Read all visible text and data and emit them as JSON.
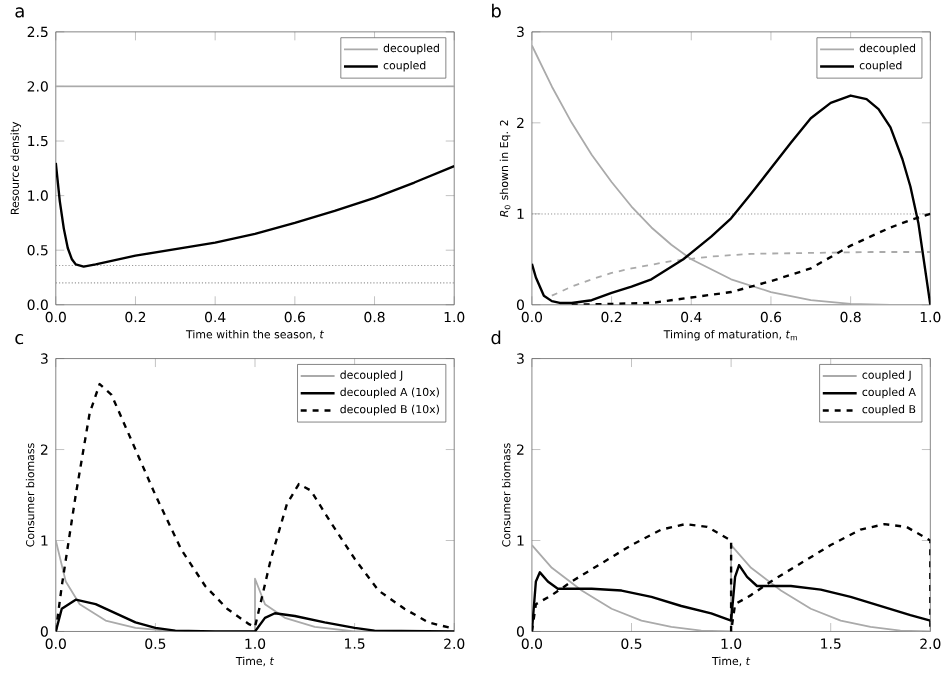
{
  "chart_data": [
    {
      "type": "line",
      "title": "a",
      "xlabel": "Time within the season, *t*",
      "ylabel": "Resource density",
      "xlim": [
        0,
        1
      ],
      "ylim": [
        0,
        2.5
      ],
      "xticks": [
        {
          "value": 0,
          "label": "0.0"
        },
        {
          "value": 0.2,
          "label": "0.2"
        },
        {
          "value": 0.4,
          "label": "0.4"
        },
        {
          "value": 0.6,
          "label": "0.6"
        },
        {
          "value": 0.8,
          "label": "0.8"
        },
        {
          "value": 1,
          "label": "1.0"
        }
      ],
      "yticks": [
        {
          "value": 0,
          "label": "0.0"
        },
        {
          "value": 0.5,
          "label": "0.5"
        },
        {
          "value": 1,
          "label": "1.0"
        },
        {
          "value": 1.5,
          "label": "1.5"
        },
        {
          "value": 2,
          "label": "2.0"
        },
        {
          "value": 2.5,
          "label": "2.5"
        }
      ],
      "legend": "top right",
      "grid": false,
      "marker": "none",
      "ref_lines": [
        {
          "axis": "y",
          "value": 0.36,
          "color": "#999999",
          "line_style": "dotted"
        },
        {
          "axis": "y",
          "value": 0.2,
          "color": "#999999",
          "line_style": "dotted"
        }
      ],
      "series": [
        {
          "name": "decoupled",
          "color": "#aaaaaa",
          "line_style": "solid",
          "x": [
            0,
            1
          ],
          "values": [
            2,
            2
          ]
        },
        {
          "name": "coupled",
          "color": "#000000",
          "line_style": "solid",
          "x": [
            0,
            0.01,
            0.02,
            0.03,
            0.04,
            0.05,
            0.07,
            0.1,
            0.15,
            0.2,
            0.3,
            0.4,
            0.5,
            0.6,
            0.7,
            0.8,
            0.9,
            1.0
          ],
          "values": [
            1.3,
            0.95,
            0.7,
            0.52,
            0.42,
            0.37,
            0.35,
            0.37,
            0.41,
            0.45,
            0.51,
            0.57,
            0.65,
            0.75,
            0.86,
            0.98,
            1.12,
            1.27
          ]
        }
      ]
    },
    {
      "type": "line",
      "title": "b",
      "xlabel": "Timing of maturation, *t*$_{m}$",
      "ylabel": "*R*$_{0}$ shown in Eq. 2",
      "xlim": [
        0,
        1
      ],
      "ylim": [
        0,
        3
      ],
      "xticks": [
        {
          "value": 0,
          "label": "0.0"
        },
        {
          "value": 0.2,
          "label": "0.2"
        },
        {
          "value": 0.4,
          "label": "0.4"
        },
        {
          "value": 0.6,
          "label": "0.6"
        },
        {
          "value": 0.8,
          "label": "0.8"
        },
        {
          "value": 1,
          "label": "1.0"
        }
      ],
      "yticks": [
        0,
        1,
        2,
        3
      ],
      "legend": "top right",
      "grid": false,
      "marker": "none",
      "ref_lines": [
        {
          "axis": "y",
          "value": 1,
          "color": "#999999",
          "line_style": "dotted"
        }
      ],
      "series": [
        {
          "name": "decoupled",
          "color": "#aaaaaa",
          "line_style": "solid",
          "x": [
            0,
            0.05,
            0.1,
            0.15,
            0.2,
            0.25,
            0.3,
            0.35,
            0.4,
            0.5,
            0.6,
            0.7,
            0.8,
            0.9,
            1.0
          ],
          "values": [
            2.85,
            2.4,
            2.0,
            1.65,
            1.35,
            1.08,
            0.85,
            0.66,
            0.5,
            0.28,
            0.14,
            0.05,
            0.01,
            0,
            0
          ]
        },
        {
          "color": "#aaaaaa",
          "line_style": "dashed",
          "x": [
            0.05,
            0.1,
            0.15,
            0.2,
            0.25,
            0.35,
            0.45,
            0.55,
            0.7,
            0.85,
            1.0
          ],
          "values": [
            0.1,
            0.2,
            0.28,
            0.35,
            0.4,
            0.48,
            0.53,
            0.56,
            0.57,
            0.58,
            0.58
          ]
        },
        {
          "name": "coupled",
          "color": "#000000",
          "line_style": "solid",
          "x": [
            0,
            0.01,
            0.03,
            0.05,
            0.07,
            0.1,
            0.15,
            0.2,
            0.25,
            0.3,
            0.38,
            0.45,
            0.5,
            0.55,
            0.6,
            0.65,
            0.7,
            0.75,
            0.8,
            0.84,
            0.87,
            0.9,
            0.93,
            0.95,
            0.97,
            0.99,
            1.0
          ],
          "values": [
            0.45,
            0.3,
            0.1,
            0.04,
            0.02,
            0.02,
            0.05,
            0.13,
            0.2,
            0.28,
            0.5,
            0.75,
            0.95,
            1.22,
            1.5,
            1.78,
            2.05,
            2.22,
            2.3,
            2.26,
            2.15,
            1.95,
            1.6,
            1.3,
            0.9,
            0.3,
            0
          ]
        },
        {
          "color": "#000000",
          "line_style": "dashed",
          "x": [
            0.1,
            0.2,
            0.3,
            0.4,
            0.5,
            0.55,
            0.6,
            0.7,
            0.8,
            0.9,
            0.95,
            1.0
          ],
          "values": [
            0,
            0.01,
            0.02,
            0.08,
            0.14,
            0.2,
            0.26,
            0.4,
            0.65,
            0.85,
            0.93,
            1.0
          ]
        }
      ]
    },
    {
      "type": "line",
      "title": "c",
      "xlabel": "Time, *t*",
      "ylabel": "Consumer biomass",
      "xlim": [
        0,
        2
      ],
      "ylim": [
        0,
        3
      ],
      "xticks": [
        {
          "value": 0,
          "label": "0.0"
        },
        {
          "value": 0.5,
          "label": "0.5"
        },
        {
          "value": 1,
          "label": "1.0"
        },
        {
          "value": 1.5,
          "label": "1.5"
        },
        {
          "value": 2,
          "label": "2.0"
        }
      ],
      "yticks": [
        0,
        1,
        2,
        3
      ],
      "legend": "top right",
      "grid": false,
      "marker": "none",
      "series": [
        {
          "name": "decoupled J",
          "color": "#aaaaaa",
          "line_style": "solid",
          "x": [
            0,
            0.05,
            0.12,
            0.25,
            0.4,
            0.6,
            1.0,
            1.0,
            1.05,
            1.15,
            1.3,
            1.5,
            2.0
          ],
          "values": [
            1.0,
            0.55,
            0.3,
            0.12,
            0.04,
            0,
            0,
            0.58,
            0.3,
            0.15,
            0.05,
            0,
            0
          ]
        },
        {
          "name": "decoupled A (10x)",
          "color": "#000000",
          "line_style": "solid",
          "x": [
            0,
            0.03,
            0.1,
            0.2,
            0.3,
            0.4,
            0.5,
            0.6,
            0.8,
            1.0,
            1.05,
            1.1,
            1.2,
            1.35,
            1.5,
            1.6,
            2.0
          ],
          "values": [
            0,
            0.25,
            0.35,
            0.3,
            0.2,
            0.1,
            0.04,
            0.01,
            0,
            0,
            0.15,
            0.2,
            0.17,
            0.1,
            0.04,
            0.01,
            0
          ]
        },
        {
          "name": "decoupled B (10x)",
          "color": "#000000",
          "line_style": "dashed",
          "x": [
            0,
            0.03,
            0.1,
            0.17,
            0.22,
            0.28,
            0.38,
            0.5,
            0.63,
            0.75,
            0.86,
            0.97,
            1.0,
            1.08,
            1.16,
            1.22,
            1.28,
            1.38,
            1.5,
            1.62,
            1.75,
            1.87,
            2.0
          ],
          "values": [
            0,
            0.5,
            1.5,
            2.4,
            2.72,
            2.6,
            2.1,
            1.5,
            0.9,
            0.5,
            0.25,
            0.08,
            0.05,
            0.8,
            1.4,
            1.62,
            1.55,
            1.2,
            0.8,
            0.45,
            0.25,
            0.1,
            0.03
          ]
        }
      ]
    },
    {
      "type": "line",
      "title": "d",
      "xlabel": "Time, *t*",
      "ylabel": "Consumer biomass",
      "xlim": [
        0,
        2
      ],
      "ylim": [
        0,
        3
      ],
      "xticks": [
        {
          "value": 0,
          "label": "0.0"
        },
        {
          "value": 0.5,
          "label": "0.5"
        },
        {
          "value": 1,
          "label": "1.0"
        },
        {
          "value": 1.5,
          "label": "1.5"
        },
        {
          "value": 2,
          "label": "2.0"
        }
      ],
      "yticks": [
        0,
        1,
        2,
        3
      ],
      "legend": "top right",
      "grid": false,
      "marker": "none",
      "series": [
        {
          "name": "coupled J",
          "color": "#aaaaaa",
          "line_style": "solid",
          "x": [
            0,
            0.1,
            0.25,
            0.4,
            0.55,
            0.7,
            0.85,
            1.0,
            1.0,
            1.1,
            1.25,
            1.4,
            1.55,
            1.7,
            1.85,
            2.0
          ],
          "values": [
            0.95,
            0.7,
            0.45,
            0.25,
            0.12,
            0.05,
            0.01,
            0,
            0.95,
            0.7,
            0.45,
            0.25,
            0.12,
            0.05,
            0.01,
            0
          ]
        },
        {
          "name": "coupled A",
          "color": "#000000",
          "line_style": "solid",
          "x": [
            0,
            0.02,
            0.04,
            0.08,
            0.13,
            0.3,
            0.45,
            0.6,
            0.75,
            0.9,
            1.0,
            1.0,
            1.02,
            1.04,
            1.08,
            1.13,
            1.3,
            1.45,
            1.6,
            1.75,
            1.9,
            2.0
          ],
          "values": [
            0,
            0.55,
            0.65,
            0.55,
            0.47,
            0.47,
            0.45,
            0.38,
            0.28,
            0.2,
            0.12,
            0.12,
            0.6,
            0.73,
            0.6,
            0.5,
            0.5,
            0.46,
            0.38,
            0.28,
            0.18,
            0.12
          ]
        },
        {
          "name": "coupled B",
          "color": "#000000",
          "line_style": "dashed",
          "x": [
            0,
            0.02,
            0.1,
            0.2,
            0.35,
            0.5,
            0.65,
            0.77,
            0.88,
            1.0,
            1.0,
            1.02,
            1.1,
            1.2,
            1.35,
            1.5,
            1.65,
            1.77,
            1.88,
            2.0,
            2.0
          ],
          "values": [
            0,
            0.3,
            0.4,
            0.55,
            0.75,
            0.95,
            1.12,
            1.18,
            1.15,
            1.0,
            0,
            0.3,
            0.4,
            0.55,
            0.75,
            0.95,
            1.12,
            1.18,
            1.15,
            1.0,
            0
          ]
        }
      ]
    }
  ]
}
